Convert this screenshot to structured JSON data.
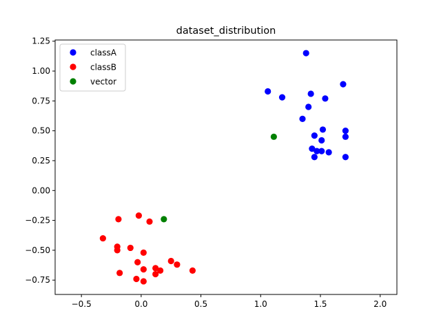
{
  "chart_data": {
    "type": "scatter",
    "title": "dataset_distribution",
    "xlabel": "",
    "ylabel": "",
    "xlim": [
      -0.72,
      2.14
    ],
    "ylim": [
      -0.87,
      1.26
    ],
    "xticks": [
      -0.5,
      0.0,
      0.5,
      1.0,
      1.5,
      2.0
    ],
    "xtick_labels": [
      "−0.5",
      "0.0",
      "0.5",
      "1.0",
      "1.5",
      "2.0"
    ],
    "yticks": [
      -0.75,
      -0.5,
      -0.25,
      0.0,
      0.25,
      0.5,
      0.75,
      1.0,
      1.25
    ],
    "ytick_labels": [
      "−0.75",
      "−0.50",
      "−0.25",
      "0.00",
      "0.25",
      "0.50",
      "0.75",
      "1.00",
      "1.25"
    ],
    "grid": false,
    "legend_position": "top-left",
    "series": [
      {
        "name": "classA",
        "color": "#0000ff",
        "points": [
          [
            1.38,
            1.15
          ],
          [
            1.69,
            0.89
          ],
          [
            1.06,
            0.83
          ],
          [
            1.42,
            0.81
          ],
          [
            1.18,
            0.78
          ],
          [
            1.54,
            0.77
          ],
          [
            1.4,
            0.7
          ],
          [
            1.35,
            0.6
          ],
          [
            1.52,
            0.51
          ],
          [
            1.71,
            0.5
          ],
          [
            1.45,
            0.46
          ],
          [
            1.71,
            0.45
          ],
          [
            1.51,
            0.42
          ],
          [
            1.43,
            0.35
          ],
          [
            1.47,
            0.33
          ],
          [
            1.51,
            0.33
          ],
          [
            1.57,
            0.32
          ],
          [
            1.45,
            0.28
          ],
          [
            1.71,
            0.28
          ]
        ]
      },
      {
        "name": "classB",
        "color": "#ff0000",
        "points": [
          [
            -0.19,
            -0.24
          ],
          [
            -0.02,
            -0.21
          ],
          [
            0.07,
            -0.26
          ],
          [
            -0.32,
            -0.4
          ],
          [
            -0.2,
            -0.47
          ],
          [
            -0.09,
            -0.48
          ],
          [
            -0.2,
            -0.5
          ],
          [
            0.02,
            -0.52
          ],
          [
            -0.03,
            -0.6
          ],
          [
            0.25,
            -0.59
          ],
          [
            0.3,
            -0.62
          ],
          [
            0.12,
            -0.65
          ],
          [
            0.02,
            -0.66
          ],
          [
            0.16,
            -0.67
          ],
          [
            0.43,
            -0.67
          ],
          [
            -0.18,
            -0.69
          ],
          [
            0.12,
            -0.7
          ],
          [
            -0.04,
            -0.74
          ],
          [
            0.02,
            -0.76
          ]
        ]
      },
      {
        "name": "vector",
        "color": "#008000",
        "points": [
          [
            1.11,
            0.45
          ],
          [
            0.19,
            -0.24
          ]
        ]
      }
    ]
  }
}
